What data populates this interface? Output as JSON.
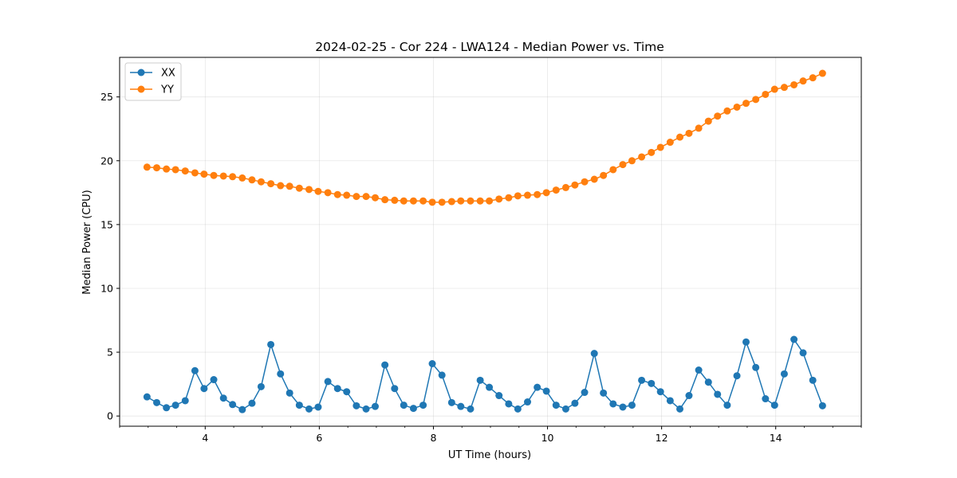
{
  "chart_data": {
    "type": "line",
    "title": "2024-02-25 - Cor 224 - LWA124 - Median Power vs. Time",
    "xlabel": "UT Time (hours)",
    "ylabel": "Median Power (CPU)",
    "xlim": [
      2.5,
      15.5
    ],
    "ylim": [
      -0.8,
      28.1
    ],
    "xticks": [
      4,
      6,
      8,
      10,
      12,
      14
    ],
    "xtick_labels": [
      "4",
      "6",
      "8",
      "10",
      "12",
      "14"
    ],
    "yticks": [
      0,
      5,
      10,
      15,
      20,
      25
    ],
    "ytick_labels": [
      "0",
      "5",
      "10",
      "15",
      "20",
      "25"
    ],
    "grid": true,
    "legend_position": "top-left",
    "x": [
      2.98,
      3.15,
      3.32,
      3.48,
      3.65,
      3.82,
      3.98,
      4.15,
      4.32,
      4.48,
      4.65,
      4.82,
      4.98,
      5.15,
      5.32,
      5.48,
      5.65,
      5.82,
      5.98,
      6.15,
      6.32,
      6.48,
      6.65,
      6.82,
      6.98,
      7.15,
      7.32,
      7.48,
      7.65,
      7.82,
      7.98,
      8.15,
      8.32,
      8.48,
      8.65,
      8.82,
      8.98,
      9.15,
      9.32,
      9.48,
      9.65,
      9.82,
      9.98,
      10.15,
      10.32,
      10.48,
      10.65,
      10.82,
      10.98,
      11.15,
      11.32,
      11.48,
      11.65,
      11.82,
      11.98,
      12.15,
      12.32,
      12.48,
      12.65,
      12.82,
      12.98,
      13.15,
      13.32,
      13.48,
      13.65,
      13.82,
      13.98,
      14.15,
      14.32,
      14.48,
      14.65,
      14.82
    ],
    "series": [
      {
        "name": "XX",
        "color": "#1f77b4",
        "values": [
          1.5,
          1.05,
          0.65,
          0.85,
          1.2,
          3.55,
          2.15,
          2.85,
          1.4,
          0.9,
          0.5,
          1.0,
          2.3,
          5.6,
          3.3,
          1.8,
          0.85,
          0.55,
          0.7,
          2.7,
          2.15,
          1.9,
          0.8,
          0.55,
          0.75,
          4.0,
          2.15,
          0.85,
          0.6,
          0.85,
          4.1,
          3.2,
          1.05,
          0.75,
          0.55,
          2.8,
          2.25,
          1.6,
          0.95,
          0.55,
          1.1,
          2.25,
          1.95,
          0.85,
          0.55,
          1.0,
          1.85,
          4.9,
          1.8,
          0.95,
          0.7,
          0.85,
          2.8,
          2.55,
          1.9,
          1.2,
          0.55,
          1.6,
          3.6,
          2.65,
          1.7,
          0.85,
          3.15,
          5.8,
          3.8,
          1.35,
          0.85,
          3.3,
          6.0,
          4.95,
          2.8,
          0.8
        ]
      },
      {
        "name": "YY",
        "color": "#ff7f0e",
        "values": [
          19.5,
          19.45,
          19.35,
          19.3,
          19.2,
          19.05,
          18.95,
          18.85,
          18.8,
          18.75,
          18.65,
          18.5,
          18.35,
          18.2,
          18.05,
          18.0,
          17.85,
          17.75,
          17.6,
          17.5,
          17.35,
          17.3,
          17.2,
          17.2,
          17.1,
          16.95,
          16.9,
          16.85,
          16.85,
          16.85,
          16.75,
          16.75,
          16.8,
          16.85,
          16.85,
          16.85,
          16.85,
          17.0,
          17.1,
          17.25,
          17.3,
          17.35,
          17.5,
          17.7,
          17.9,
          18.1,
          18.35,
          18.55,
          18.85,
          19.3,
          19.7,
          20.0,
          20.3,
          20.65,
          21.05,
          21.45,
          21.85,
          22.15,
          22.55,
          23.1,
          23.5,
          23.9,
          24.2,
          24.5,
          24.8,
          25.2,
          25.6,
          25.75,
          25.95,
          26.25,
          26.5,
          26.85
        ]
      }
    ]
  }
}
